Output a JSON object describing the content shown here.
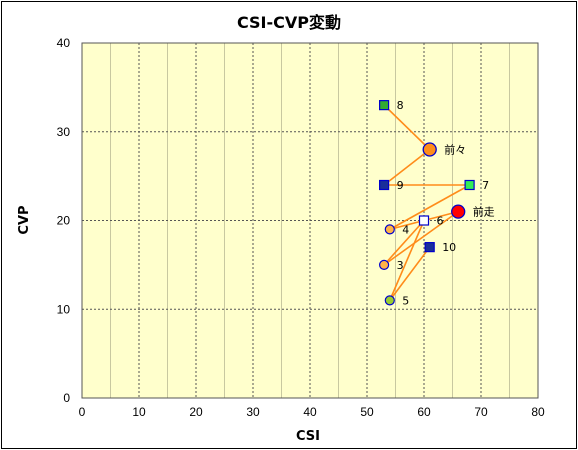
{
  "chart_data": {
    "type": "scatter",
    "title": "CSI-CVP変動",
    "xlabel": "CSI",
    "ylabel": "CVP",
    "xlim": [
      0,
      80
    ],
    "ylim": [
      0,
      40
    ],
    "xticks": [
      0,
      10,
      20,
      30,
      40,
      50,
      60,
      70,
      80
    ],
    "yticks": [
      0,
      10,
      20,
      30,
      40
    ],
    "minor_x_step": 5,
    "grid": true,
    "plot_background": "#ffffcc",
    "line_color": "#ff8c1a",
    "path_order": [
      "8",
      "前々",
      "9",
      "7",
      "4",
      "前走",
      "3",
      "6",
      "5",
      "10"
    ],
    "points": [
      {
        "label": "前走",
        "x": 66,
        "y": 21,
        "marker": "circle-large",
        "fill": "#ff0000",
        "stroke": "#0000cc"
      },
      {
        "label": "前々",
        "x": 61,
        "y": 28,
        "marker": "circle-large",
        "fill": "#ff8c1a",
        "stroke": "#0000cc"
      },
      {
        "label": "3",
        "x": 53,
        "y": 15,
        "marker": "circle",
        "fill": "#ffb347",
        "stroke": "#0000cc"
      },
      {
        "label": "4",
        "x": 54,
        "y": 19,
        "marker": "circle",
        "fill": "#ffb347",
        "stroke": "#0000cc"
      },
      {
        "label": "5",
        "x": 54,
        "y": 11,
        "marker": "circle",
        "fill": "#99cc33",
        "stroke": "#0000cc"
      },
      {
        "label": "6",
        "x": 60,
        "y": 20,
        "marker": "square",
        "fill": "#ffffff",
        "stroke": "#0000cc"
      },
      {
        "label": "7",
        "x": 68,
        "y": 24,
        "marker": "square",
        "fill": "#33ee55",
        "stroke": "#0000cc"
      },
      {
        "label": "8",
        "x": 53,
        "y": 33,
        "marker": "square",
        "fill": "#33aa33",
        "stroke": "#0000cc"
      },
      {
        "label": "9",
        "x": 53,
        "y": 24,
        "marker": "square",
        "fill": "#1a2e99",
        "stroke": "#0000cc"
      },
      {
        "label": "10",
        "x": 61,
        "y": 17,
        "marker": "square",
        "fill": "#1a2e99",
        "stroke": "#0000cc"
      }
    ]
  }
}
